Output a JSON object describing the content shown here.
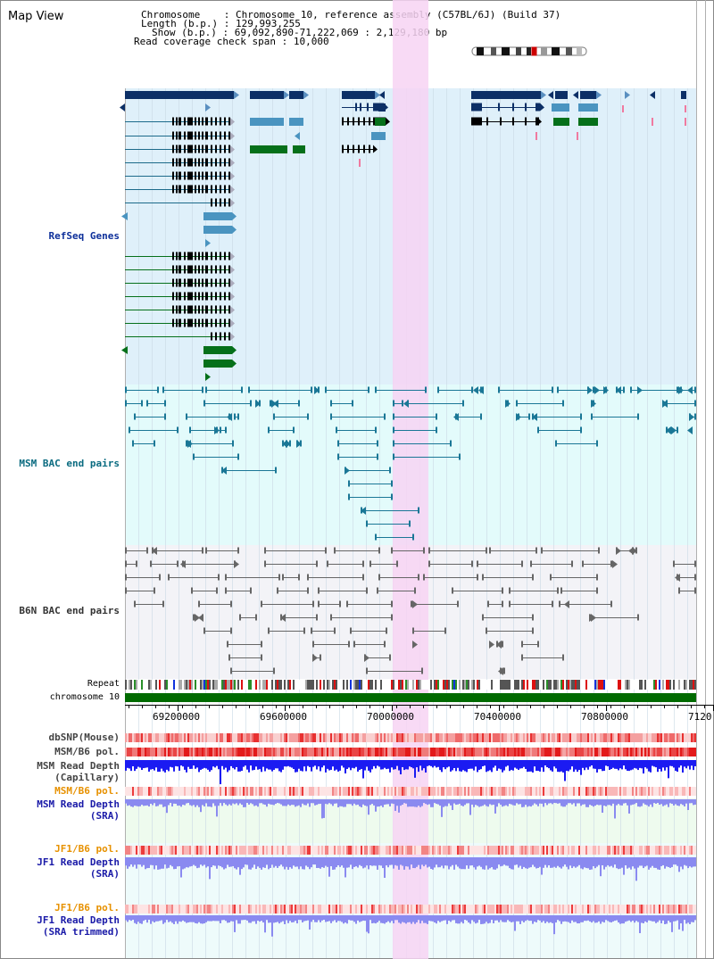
{
  "view_title": "Map View",
  "header": {
    "chromosome_key": "Chromosome",
    "chromosome_val": "Chromosome 10, reference assembly (C57BL/6J) (Build 37)",
    "length_key": "Length (b.p.)",
    "length_val": "129,993,255",
    "show_key": "Show (b.p.)",
    "show_val": "69,092,890-71,222,069 : 2,129,180 bp",
    "span_key": "Read coverage check span",
    "span_val": "10,000"
  },
  "tracks": {
    "refseq": "RefSeq Genes",
    "msm_bac": "MSM BAC end pairs",
    "b6n_bac": "B6N BAC end pairs",
    "repeat": "Repeat",
    "chromosome": "chromosome 10",
    "dbsnp": "dbSNP(Mouse)",
    "msm_b6_pol": "MSM/B6 pol.",
    "msm_read_depth_1": "MSM Read Depth",
    "msm_read_depth_2": "(Capillary)",
    "msm_b6_pol_sra": "MSM/B6 pol.",
    "msm_sra_1": "MSM Read Depth",
    "msm_sra_2": "(SRA)",
    "jf1_b6_pol": "JF1/B6 pol.",
    "jf1_sra_1": "JF1 Read Depth",
    "jf1_sra_2": "(SRA)",
    "jf1_b6_pol_2": "JF1/B6 pol.",
    "jf1_trim_1": "JF1 Read Depth",
    "jf1_trim_2": "(SRA trimmed)"
  },
  "axis": {
    "ticks": [
      "69200000",
      "69600000",
      "70000000",
      "70400000",
      "70800000",
      "7120"
    ]
  },
  "colors": {
    "refseq_bg": "#dff0fa",
    "msm_bg": "#e3fbfb",
    "b6n_bg": "#f3f3f7",
    "highlight": "#f7d4f3",
    "gene_navy": "#0c2f66",
    "gene_steel": "#4a94c0",
    "gene_green": "#05701a",
    "chrom_green": "#006a00",
    "msm_label": "#0a6b80",
    "b6n_label": "#333333",
    "refseq_label": "#0d2f9a",
    "orange_label": "#e79100",
    "blue_label": "#1a1aa8",
    "depth_blue": "#1b1bf2",
    "depth_light": "#8a8af0"
  }
}
